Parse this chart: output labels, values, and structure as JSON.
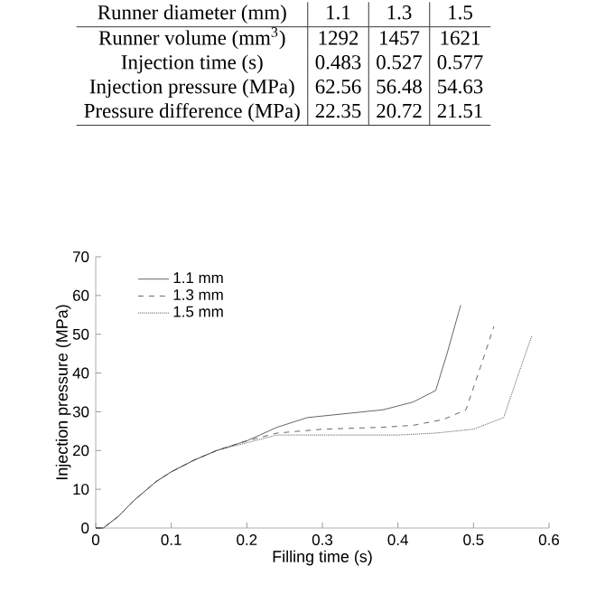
{
  "chart_data": {
    "type": "line",
    "xlabel": "Filling time (s)",
    "ylabel": "Injection pressure (MPa)",
    "series": [
      {
        "name": "1.1 mm",
        "color": "#404040",
        "line_style": "solid",
        "x": [
          0,
          0.01,
          0.03,
          0.05,
          0.08,
          0.1,
          0.13,
          0.16,
          0.2,
          0.24,
          0.28,
          0.33,
          0.38,
          0.42,
          0.45,
          0.465,
          0.483
        ],
        "values": [
          0,
          0,
          3,
          7,
          12,
          14.5,
          17.5,
          20,
          22.5,
          26,
          28.5,
          29.5,
          30.5,
          32.5,
          35.5,
          45,
          57.5
        ]
      },
      {
        "name": "1.3 mm",
        "color": "#404040",
        "line_style": "dashed",
        "x": [
          0,
          0.01,
          0.03,
          0.05,
          0.08,
          0.1,
          0.13,
          0.16,
          0.2,
          0.24,
          0.3,
          0.38,
          0.42,
          0.46,
          0.49,
          0.51,
          0.527
        ],
        "values": [
          0,
          0,
          3,
          7,
          12,
          14.5,
          17.5,
          20,
          22.5,
          24.5,
          25.5,
          26,
          26.5,
          28,
          30.5,
          42,
          52
        ]
      },
      {
        "name": "1.5 mm",
        "color": "#404040",
        "line_style": "dotted",
        "x": [
          0,
          0.01,
          0.03,
          0.05,
          0.08,
          0.1,
          0.13,
          0.16,
          0.2,
          0.24,
          0.3,
          0.4,
          0.45,
          0.5,
          0.54,
          0.56,
          0.577
        ],
        "values": [
          0,
          0,
          3,
          7,
          12,
          14.5,
          17.5,
          20,
          22,
          24,
          24,
          24,
          24.5,
          25.5,
          28.5,
          40,
          49.5
        ]
      }
    ],
    "xlim": [
      0,
      0.6
    ],
    "xticks": [
      0,
      0.1,
      0.2,
      0.3,
      0.4,
      0.5,
      0.6
    ],
    "ylim": [
      0,
      70
    ],
    "yticks": [
      0,
      10,
      20,
      30,
      40,
      50,
      60,
      70
    ],
    "legend": "top left",
    "grid": false,
    "annotations": [
      "Runner diameter (mm)",
      "1.1",
      "1.3",
      "1.5",
      "Runner volume (mm$^{3}$)",
      "1292",
      "1457",
      "1621",
      "Injection time (s)",
      "0.483",
      "0.527",
      "0.577",
      "Injection pressure (MPa)",
      "62.56",
      "56.48",
      "54.63",
      "Pressure difference (MPa)",
      "22.35",
      "20.72",
      "21.51"
    ]
  }
}
